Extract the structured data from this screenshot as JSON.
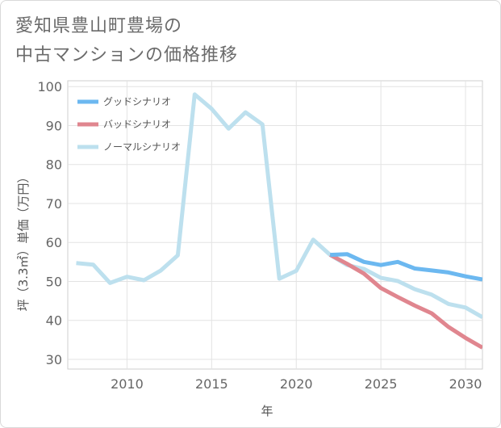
{
  "title_lines": [
    "愛知県豊山町豊場の",
    "中古マンションの価格推移"
  ],
  "chart_data": {
    "type": "line",
    "title": "愛知県豊山町豊場の中古マンションの価格推移",
    "xlabel": "年",
    "ylabel": "坪（3.3㎡）単価（万円）",
    "xlim": [
      2006.5,
      2031
    ],
    "ylim": [
      27.5,
      101.5
    ],
    "x_ticks": [
      2010,
      2015,
      2020,
      2025,
      2030
    ],
    "y_ticks": [
      30,
      40,
      50,
      60,
      70,
      80,
      90,
      100
    ],
    "legend_position": "top-left",
    "grid": true,
    "series": [
      {
        "name": "グッドシナリオ",
        "color": "#6cb8f0",
        "x": [
          2022,
          2023,
          2024,
          2025,
          2026,
          2027,
          2028,
          2029,
          2030,
          2031
        ],
        "values": [
          56.8,
          57.0,
          55.0,
          54.2,
          55.0,
          53.3,
          52.8,
          52.3,
          51.3,
          50.5
        ]
      },
      {
        "name": "バッドシナリオ",
        "color": "#e0868f",
        "x": [
          2022,
          2023,
          2024,
          2025,
          2026,
          2027,
          2028,
          2029,
          2030,
          2031
        ],
        "values": [
          56.8,
          54.5,
          52.0,
          48.3,
          46.0,
          43.8,
          41.8,
          38.3,
          35.5,
          33.0
        ]
      },
      {
        "name": "ノーマルシナリオ",
        "color": "#bde0ee",
        "x": [
          2007,
          2008,
          2009,
          2010,
          2011,
          2012,
          2013,
          2014,
          2015,
          2016,
          2017,
          2018,
          2019,
          2020,
          2021,
          2022,
          2023,
          2024,
          2025,
          2026,
          2027,
          2028,
          2029,
          2030,
          2031
        ],
        "values": [
          54.7,
          54.3,
          49.6,
          51.2,
          50.3,
          52.8,
          56.7,
          98.0,
          94.3,
          89.2,
          93.4,
          90.3,
          50.7,
          52.7,
          60.7,
          56.8,
          54.2,
          53.2,
          50.9,
          50.1,
          48.0,
          46.6,
          44.2,
          43.3,
          40.8
        ]
      }
    ]
  }
}
